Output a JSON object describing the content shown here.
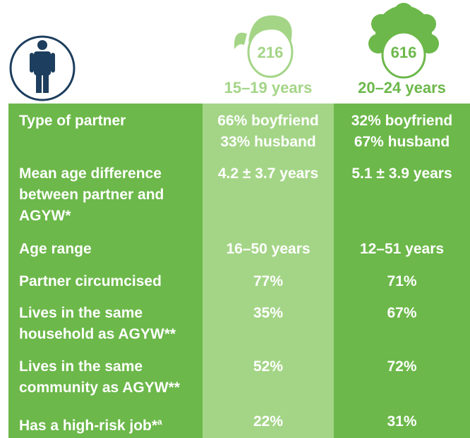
{
  "header": {
    "groups": [
      {
        "count": "216",
        "label": "15–19 years"
      },
      {
        "count": "616",
        "label": "20–24 years"
      }
    ]
  },
  "table": {
    "rows": [
      {
        "label": [
          "Type of partner"
        ],
        "values": [
          [
            "66% boyfriend",
            "33% husband"
          ],
          [
            "32% boyfriend",
            "67% husband"
          ]
        ]
      },
      {
        "label": [
          "Mean age difference",
          "between partner and",
          "AGYW*"
        ],
        "values": [
          [
            "4.2 ± 3.7 years"
          ],
          [
            "5.1 ± 3.9 years"
          ]
        ]
      },
      {
        "label": [
          "Age range"
        ],
        "values": [
          [
            "16–50 years"
          ],
          [
            "12–51 years"
          ]
        ]
      },
      {
        "label": [
          "Partner circumcised"
        ],
        "values": [
          [
            "77%"
          ],
          [
            "71%"
          ]
        ]
      },
      {
        "label": [
          "Lives in the same",
          "household as AGYW**"
        ],
        "values": [
          [
            "35%"
          ],
          [
            "67%"
          ]
        ]
      },
      {
        "label": [
          "Lives in the same",
          "community as AGYW**"
        ],
        "values": [
          [
            "52%"
          ],
          [
            "72%"
          ]
        ]
      },
      {
        "label": [
          "Has a high-risk job*"
        ],
        "label_superscript": "a",
        "values": [
          [
            "22%"
          ],
          [
            "31%"
          ]
        ]
      }
    ]
  }
}
